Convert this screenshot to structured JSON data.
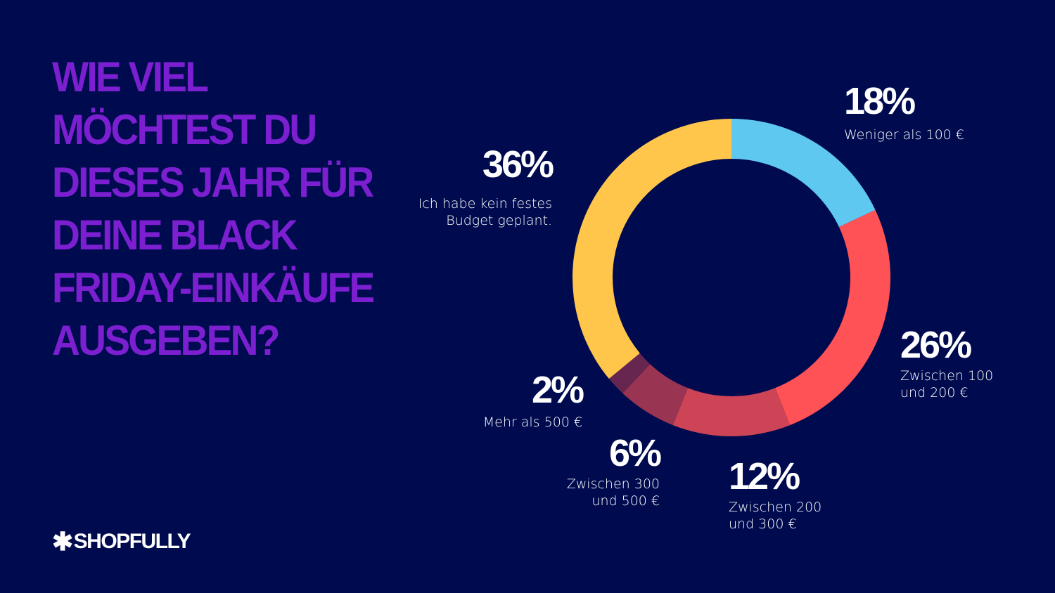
{
  "title": "Wie viel möchtest du dieses Jahr für deine Black Friday-Einkäufe ausgeben?",
  "logo": {
    "text": "SHOPFULLY",
    "icon": "asterisk-icon"
  },
  "chart_data": {
    "type": "pie",
    "variant": "donut",
    "title": "Wie viel möchtest du dieses Jahr für deine Black Friday-Einkäufe ausgeben?",
    "slices": [
      {
        "label": "Weniger als 100 €",
        "value": 18,
        "pct_label": "18%",
        "color": "#5FC8F0"
      },
      {
        "label": "Zwischen 100 und 200 €",
        "value": 26,
        "pct_label": "26%",
        "color": "#FF5257"
      },
      {
        "label": "Zwischen 200 und 300 €",
        "value": 12,
        "pct_label": "12%",
        "color": "#CC4455"
      },
      {
        "label": "Zwischen 300 und 500 €",
        "value": 6,
        "pct_label": "6%",
        "color": "#993552"
      },
      {
        "label": "Mehr als 500 €",
        "value": 2,
        "pct_label": "2%",
        "color": "#66264F"
      },
      {
        "label": "Ich habe kein festes Budget geplant.",
        "value": 36,
        "pct_label": "36%",
        "color": "#FFC64B"
      }
    ]
  },
  "colors": {
    "background": "#000B4F",
    "title": "#7B1FD0"
  }
}
